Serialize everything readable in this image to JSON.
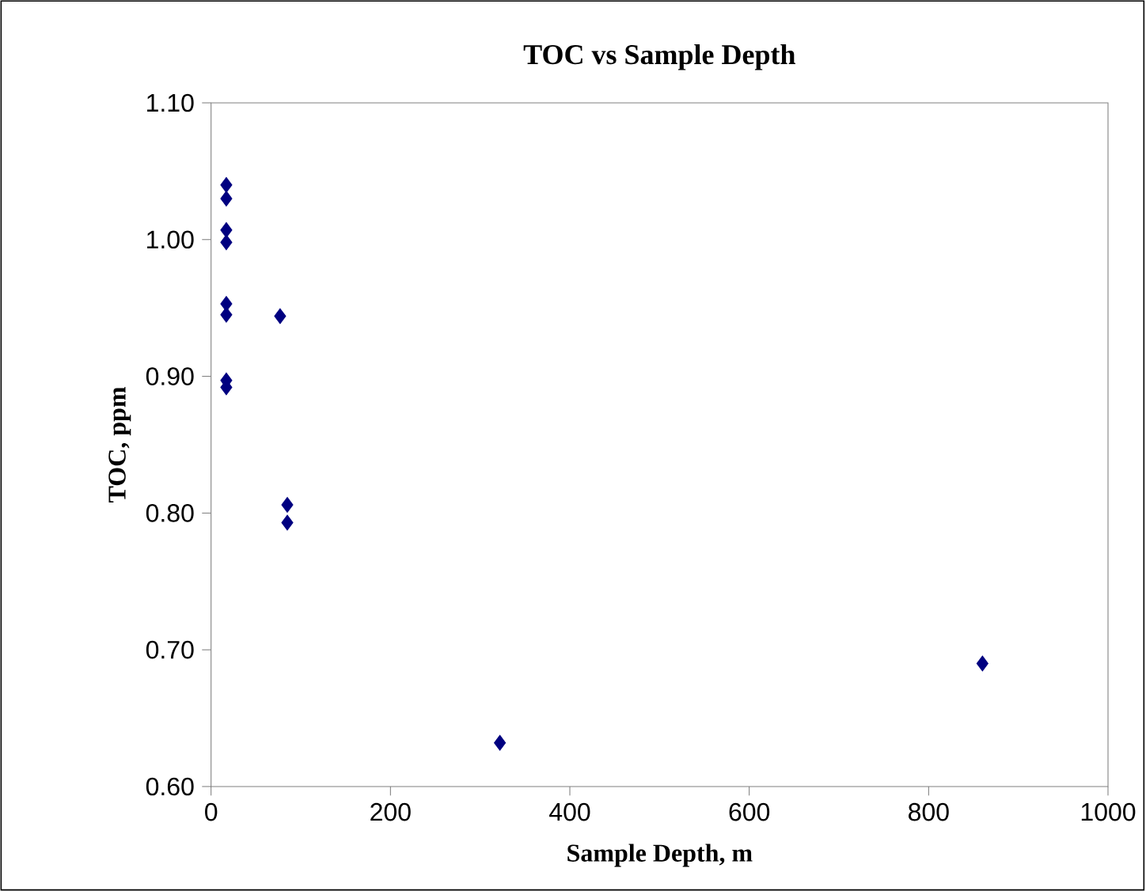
{
  "chart_data": {
    "type": "scatter",
    "title": "TOC vs Sample Depth",
    "xlabel": "Sample Depth, m",
    "ylabel": "TOC, ppm",
    "x": [
      17,
      17,
      17,
      17,
      17,
      17,
      17,
      17,
      77,
      85,
      85,
      322,
      860
    ],
    "values": [
      1.04,
      1.03,
      1.007,
      0.998,
      0.953,
      0.945,
      0.897,
      0.892,
      0.944,
      0.806,
      0.793,
      0.632,
      0.69
    ],
    "color": "#000080",
    "marker": "diamond",
    "grid": false,
    "xlim": [
      0,
      1000
    ],
    "xticks": [
      0,
      200,
      400,
      600,
      800,
      1000
    ],
    "ylim": [
      0.6,
      1.1
    ],
    "yticks": [
      {
        "value": 0.6,
        "label": "0.60"
      },
      {
        "value": 0.7,
        "label": "0.70"
      },
      {
        "value": 0.8,
        "label": "0.80"
      },
      {
        "value": 0.9,
        "label": "0.90"
      },
      {
        "value": 1.0,
        "label": "1.00"
      },
      {
        "value": 1.1,
        "label": "1.10"
      }
    ]
  }
}
